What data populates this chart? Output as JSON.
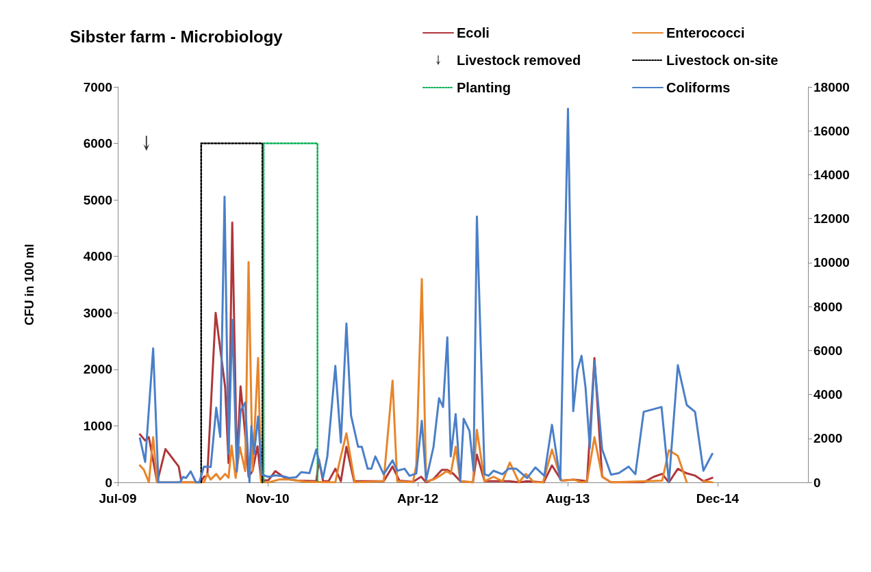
{
  "chart_data": {
    "type": "line",
    "title": "Sibster farm - Microbiology",
    "ylabel": "CFU in 100 ml",
    "legend": "top right",
    "xlim": [
      "2009-07-31",
      "2015-09-21"
    ],
    "xticks": [
      {
        "value": "2009-07-31",
        "label": "Jul-09"
      },
      {
        "value": "2010-11-30",
        "label": "Nov-10"
      },
      {
        "value": "2012-04-01",
        "label": "Apr-12"
      },
      {
        "value": "2013-08-01",
        "label": "Aug-13"
      },
      {
        "value": "2014-12-01",
        "label": "Dec-14"
      }
    ],
    "ylim": [
      0,
      7000
    ],
    "yticks": [
      0,
      1000,
      2000,
      3000,
      4000,
      5000,
      6000,
      7000
    ],
    "y2lim": [
      0,
      18000
    ],
    "y2ticks": [
      0,
      2000,
      4000,
      6000,
      8000,
      10000,
      12000,
      14000,
      16000,
      18000
    ],
    "series": [
      {
        "name": "Ecoli",
        "color": "#b0363a",
        "x": [
          "2009-10-11",
          "2009-10-28",
          "2009-11-09",
          "2009-12-06",
          "2010-01-02",
          "2010-02-14",
          "2010-02-23",
          "2010-04-26",
          "2010-05-07",
          "2010-05-18",
          "2010-06-14",
          "2010-07-15",
          "2010-07-26",
          "2010-08-07",
          "2010-08-22",
          "2010-09-03",
          "2010-09-16",
          "2010-09-29",
          "2010-10-12",
          "2010-10-28",
          "2010-11-09",
          "2010-12-03",
          "2010-12-25",
          "2011-01-19",
          "2011-02-11",
          "2011-03-08",
          "2011-05-07",
          "2011-05-16",
          "2011-05-29",
          "2011-06-16",
          "2011-07-08",
          "2011-07-26",
          "2011-08-13",
          "2011-09-07",
          "2011-12-12",
          "2012-01-10",
          "2012-02-01",
          "2012-03-16",
          "2012-04-12",
          "2012-04-28",
          "2012-05-22",
          "2012-06-18",
          "2012-07-06",
          "2012-07-26",
          "2012-08-17",
          "2012-09-27",
          "2012-10-10",
          "2012-11-04",
          "2013-01-23",
          "2013-02-24",
          "2013-03-22",
          "2013-05-15",
          "2013-06-11",
          "2013-07-12",
          "2013-08-21",
          "2013-10-03",
          "2013-10-27",
          "2013-11-21",
          "2013-12-20",
          "2014-04-05",
          "2014-05-08",
          "2014-06-04",
          "2014-06-26",
          "2014-07-25",
          "2014-08-23",
          "2014-09-19",
          "2014-10-16",
          "2014-11-14"
        ],
        "values": [
          850,
          740,
          800,
          0,
          590,
          280,
          0,
          0,
          100,
          120,
          3000,
          1680,
          340,
          4600,
          340,
          1700,
          970,
          100,
          200,
          640,
          30,
          40,
          200,
          100,
          50,
          30,
          20,
          400,
          20,
          20,
          240,
          20,
          630,
          20,
          20,
          280,
          30,
          10,
          100,
          0,
          60,
          220,
          220,
          150,
          20,
          0,
          490,
          20,
          20,
          0,
          20,
          0,
          300,
          30,
          50,
          20,
          2200,
          100,
          0,
          0,
          100,
          150,
          0,
          240,
          160,
          120,
          20,
          80
        ]
      },
      {
        "name": "Enterococci",
        "color": "#e8852a",
        "x": [
          "2009-10-11",
          "2009-10-24",
          "2009-11-09",
          "2009-11-23",
          "2009-12-06",
          "2010-05-07",
          "2010-05-18",
          "2010-05-29",
          "2010-06-16",
          "2010-06-29",
          "2010-07-15",
          "2010-07-26",
          "2010-08-05",
          "2010-08-18",
          "2010-09-01",
          "2010-09-18",
          "2010-09-29",
          "2010-10-12",
          "2010-10-30",
          "2010-11-09",
          "2010-12-05",
          "2011-01-06",
          "2011-02-09",
          "2011-04-04",
          "2011-07-08",
          "2011-07-19",
          "2011-08-13",
          "2011-09-09",
          "2011-12-12",
          "2012-01-10",
          "2012-01-25",
          "2012-03-16",
          "2012-03-27",
          "2012-04-14",
          "2012-04-28",
          "2012-05-22",
          "2012-06-13",
          "2012-07-04",
          "2012-07-17",
          "2012-08-02",
          "2012-08-17",
          "2012-09-27",
          "2012-10-10",
          "2012-11-04",
          "2012-12-03",
          "2013-01-01",
          "2013-01-25",
          "2013-02-24",
          "2013-03-18",
          "2013-04-14",
          "2013-05-13",
          "2013-06-11",
          "2013-07-12",
          "2013-08-21",
          "2013-09-15",
          "2013-10-03",
          "2013-10-27",
          "2013-11-21",
          "2013-12-20",
          "2014-06-04",
          "2014-06-26",
          "2014-07-25",
          "2014-08-23",
          "2014-09-19",
          "2014-10-16",
          "2014-11-14"
        ],
        "values": [
          300,
          220,
          0,
          800,
          0,
          0,
          150,
          50,
          150,
          50,
          150,
          80,
          650,
          80,
          620,
          200,
          3900,
          200,
          2200,
          0,
          0,
          50,
          50,
          10,
          0,
          300,
          870,
          0,
          20,
          1800,
          20,
          0,
          300,
          3600,
          20,
          50,
          120,
          200,
          150,
          630,
          20,
          0,
          930,
          20,
          100,
          20,
          350,
          0,
          150,
          0,
          0,
          580,
          30,
          50,
          0,
          20,
          800,
          100,
          0,
          30,
          570,
          470,
          0,
          null,
          20,
          0
        ]
      },
      {
        "name": "Livestock removed",
        "type": "scatter",
        "color": "#000000",
        "x": [
          "2009-11-01"
        ],
        "values": [
          6000
        ]
      },
      {
        "name": "Livestock on-site",
        "color": "#000000",
        "line_style": "dotted",
        "x": [
          "2010-04-28",
          "2010-04-28",
          "2010-11-13",
          "2010-11-13"
        ],
        "values": [
          0,
          6000,
          6000,
          0
        ]
      },
      {
        "name": "Planting",
        "color": "#00b050",
        "line_style": "dotted",
        "x": [
          "2010-11-17",
          "2010-11-17",
          "2011-05-11",
          "2011-05-11"
        ],
        "values": [
          0,
          6000,
          6000,
          0
        ]
      },
      {
        "name": "Coliforms",
        "color": "#4a7fc8",
        "axis": "y2",
        "x": [
          "2009-10-11",
          "2009-10-28",
          "2009-11-23",
          "2009-12-10",
          "2010-02-18",
          "2010-02-28",
          "2010-03-10",
          "2010-03-25",
          "2010-04-11",
          "2010-04-22",
          "2010-05-07",
          "2010-05-29",
          "2010-06-16",
          "2010-06-29",
          "2010-07-13",
          "2010-07-26",
          "2010-08-07",
          "2010-08-22",
          "2010-09-03",
          "2010-09-18",
          "2010-10-02",
          "2010-10-08",
          "2010-10-17",
          "2010-10-30",
          "2010-11-11",
          "2010-12-03",
          "2010-12-25",
          "2011-01-19",
          "2011-02-09",
          "2011-03-03",
          "2011-03-19",
          "2011-04-15",
          "2011-05-07",
          "2011-05-29",
          "2011-06-12",
          "2011-07-08",
          "2011-07-26",
          "2011-08-13",
          "2011-08-28",
          "2011-09-20",
          "2011-10-02",
          "2011-10-21",
          "2011-11-02",
          "2011-11-15",
          "2011-12-12",
          "2012-01-10",
          "2012-01-25",
          "2012-02-18",
          "2012-03-05",
          "2012-03-27",
          "2012-04-14",
          "2012-04-28",
          "2012-05-22",
          "2012-06-09",
          "2012-06-22",
          "2012-07-06",
          "2012-07-17",
          "2012-08-02",
          "2012-08-17",
          "2012-08-28",
          "2012-09-16",
          "2012-09-29",
          "2012-10-10",
          "2012-11-04",
          "2012-11-17",
          "2012-12-03",
          "2013-01-01",
          "2013-01-21",
          "2013-02-15",
          "2013-03-22",
          "2013-04-18",
          "2013-05-17",
          "2013-06-11",
          "2013-07-08",
          "2013-08-02",
          "2013-08-19",
          "2013-09-02",
          "2013-09-15",
          "2013-09-28",
          "2013-10-12",
          "2013-10-27",
          "2013-11-21",
          "2013-12-20",
          "2014-01-14",
          "2014-02-15",
          "2014-03-09",
          "2014-04-05",
          "2014-06-02",
          "2014-06-26",
          "2014-07-25",
          "2014-08-23",
          "2014-09-19",
          "2014-10-16",
          "2014-11-14"
        ],
        "values": [
          2000,
          930,
          6100,
          0,
          0,
          250,
          200,
          500,
          0,
          0,
          720,
          700,
          3400,
          2070,
          13000,
          1300,
          7400,
          500,
          3250,
          3630,
          0,
          2560,
          1300,
          3000,
          350,
          250,
          320,
          280,
          200,
          230,
          470,
          420,
          1500,
          200,
          1180,
          5300,
          1810,
          7230,
          3050,
          1620,
          1620,
          620,
          620,
          1180,
          370,
          1000,
          530,
          620,
          300,
          400,
          2800,
          100,
          1620,
          3830,
          3430,
          6600,
          1180,
          3110,
          60,
          2900,
          2340,
          530,
          12100,
          370,
          300,
          530,
          370,
          620,
          620,
          200,
          680,
          300,
          2620,
          120,
          17000,
          3240,
          5110,
          5760,
          4330,
          1560,
          5510,
          1500,
          350,
          420,
          720,
          370,
          3210,
          3430,
          0,
          5330,
          3520,
          3210,
          530,
          1300
        ]
      }
    ]
  }
}
